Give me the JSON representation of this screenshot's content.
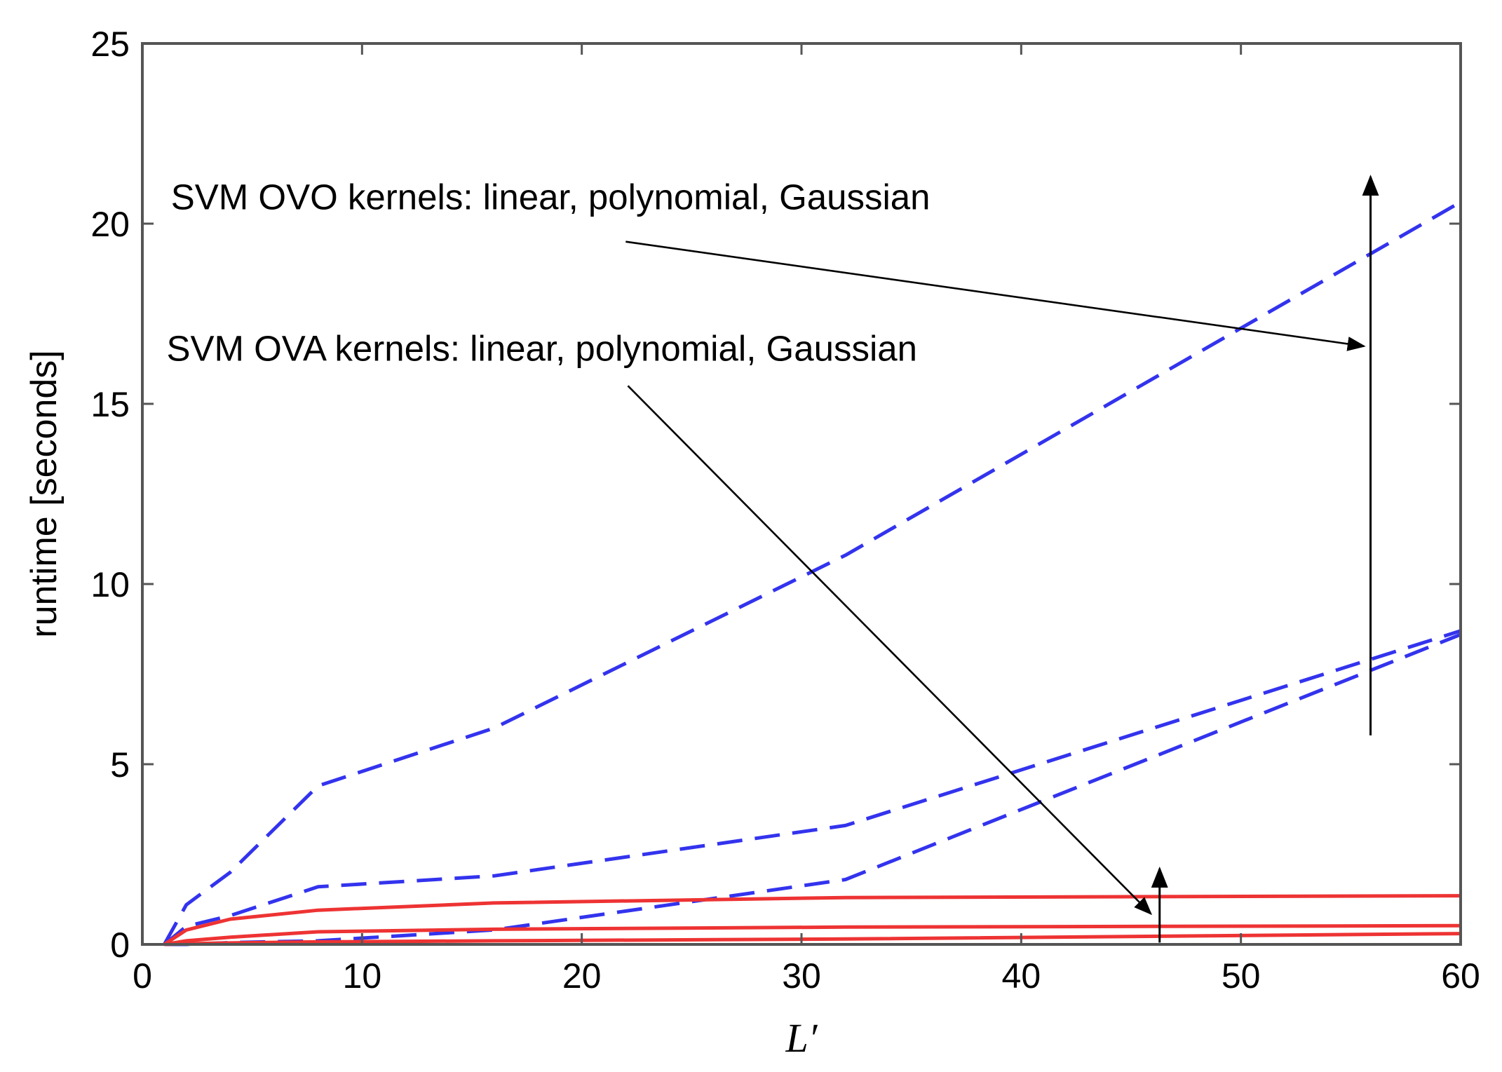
{
  "chart_data": {
    "type": "line",
    "title": "",
    "xlabel": "L′",
    "ylabel": "runtime [seconds]",
    "xlim": [
      0,
      60
    ],
    "ylim": [
      0,
      25
    ],
    "xticks": [
      0,
      10,
      20,
      30,
      40,
      50,
      60
    ],
    "yticks": [
      0,
      5,
      10,
      15,
      20,
      25
    ],
    "grid": false,
    "series": [
      {
        "name": "SVM OVO linear",
        "style": "dashed",
        "color": "#3333ee",
        "x": [
          1,
          2,
          4,
          8,
          16,
          32,
          60
        ],
        "y": [
          0.0,
          0.0,
          0.05,
          0.1,
          0.4,
          1.8,
          8.6
        ]
      },
      {
        "name": "SVM OVO polynomial",
        "style": "dashed",
        "color": "#3333ee",
        "x": [
          1,
          2,
          4,
          8,
          16,
          32,
          60
        ],
        "y": [
          0.0,
          0.5,
          0.8,
          1.6,
          1.9,
          3.3,
          8.7
        ]
      },
      {
        "name": "SVM OVO Gaussian",
        "style": "dashed",
        "color": "#3333ee",
        "x": [
          1,
          2,
          4,
          8,
          16,
          32,
          60
        ],
        "y": [
          0.0,
          1.1,
          2.0,
          4.4,
          6.0,
          10.8,
          20.6
        ]
      },
      {
        "name": "SVM OVA linear",
        "style": "solid",
        "color": "#ee3333",
        "x": [
          1,
          2,
          4,
          8,
          16,
          32,
          60
        ],
        "y": [
          0.0,
          0.02,
          0.04,
          0.07,
          0.1,
          0.15,
          0.3
        ]
      },
      {
        "name": "SVM OVA polynomial",
        "style": "solid",
        "color": "#ee3333",
        "x": [
          1,
          2,
          4,
          8,
          16,
          32,
          60
        ],
        "y": [
          0.0,
          0.1,
          0.2,
          0.35,
          0.42,
          0.48,
          0.52
        ]
      },
      {
        "name": "SVM OVA Gaussian",
        "style": "solid",
        "color": "#ee3333",
        "x": [
          1,
          2,
          4,
          8,
          16,
          32,
          60
        ],
        "y": [
          0.0,
          0.4,
          0.7,
          0.95,
          1.15,
          1.3,
          1.35
        ]
      }
    ],
    "annotations": [
      {
        "text": "SVM OVO kernels: linear, polynomial, Gaussian",
        "text_at": [
          1.3,
          20.4
        ],
        "pointer_from": [
          22,
          19.5
        ],
        "pointer_to": [
          55.6,
          16.6
        ],
        "trend_arrow_from": [
          55.9,
          5.8
        ],
        "trend_arrow_to": [
          55.9,
          21.3
        ]
      },
      {
        "text": "SVM OVA kernels: linear, polynomial, Gaussian",
        "text_at": [
          1.1,
          16.2
        ],
        "pointer_from": [
          22.1,
          15.5
        ],
        "pointer_to": [
          45.9,
          0.85
        ],
        "trend_arrow_from": [
          46.3,
          0.05
        ],
        "trend_arrow_to": [
          46.3,
          2.1
        ]
      }
    ]
  }
}
